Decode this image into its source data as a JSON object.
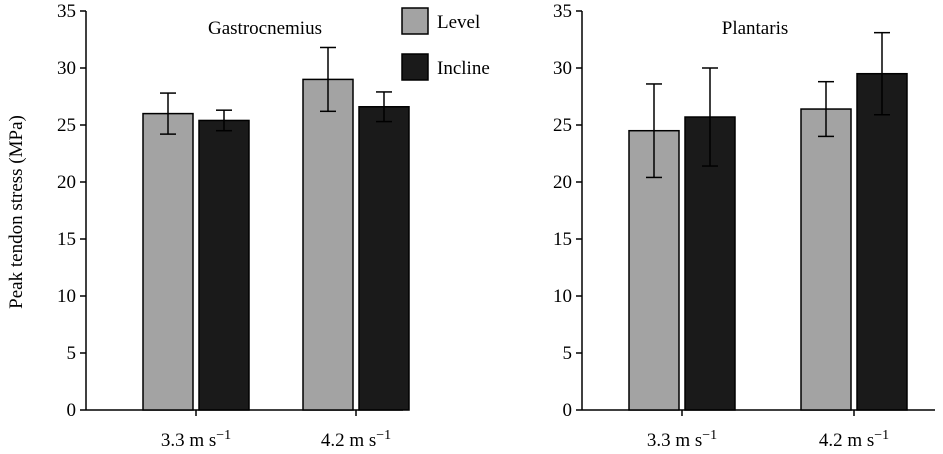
{
  "chart_data": [
    {
      "type": "bar",
      "title": "Gastrocnemius",
      "ylabel": "Peak tendon stress (MPa)",
      "xlabel": "",
      "categories": [
        {
          "value": "3.3 m s",
          "sup": "−1"
        },
        {
          "value": "4.2 m s",
          "sup": "−1"
        }
      ],
      "ylim": [
        0,
        35
      ],
      "yticks": [
        "0",
        "5",
        "10",
        "15",
        "20",
        "25",
        "30",
        "35"
      ],
      "series": [
        {
          "name": "Level",
          "color": "#a3a3a3",
          "values": [
            26.0,
            29.0
          ],
          "errors": [
            1.8,
            2.8
          ]
        },
        {
          "name": "Incline",
          "color": "#1a1a1a",
          "values": [
            25.4,
            26.6
          ],
          "errors": [
            0.9,
            1.3
          ]
        }
      ],
      "legend": "top-right",
      "grid": false
    },
    {
      "type": "bar",
      "title": "Plantaris",
      "ylabel": "",
      "xlabel": "",
      "categories": [
        {
          "value": "3.3 m s",
          "sup": "−1"
        },
        {
          "value": "4.2 m s",
          "sup": "−1"
        }
      ],
      "ylim": [
        0,
        35
      ],
      "yticks": [
        "0",
        "5",
        "10",
        "15",
        "20",
        "25",
        "30",
        "35"
      ],
      "series": [
        {
          "name": "Level",
          "color": "#a3a3a3",
          "values": [
            24.5,
            26.4
          ],
          "errors": [
            4.1,
            2.4
          ]
        },
        {
          "name": "Incline",
          "color": "#1a1a1a",
          "values": [
            25.7,
            29.5
          ],
          "errors": [
            4.3,
            3.6
          ]
        }
      ],
      "grid": false
    }
  ]
}
